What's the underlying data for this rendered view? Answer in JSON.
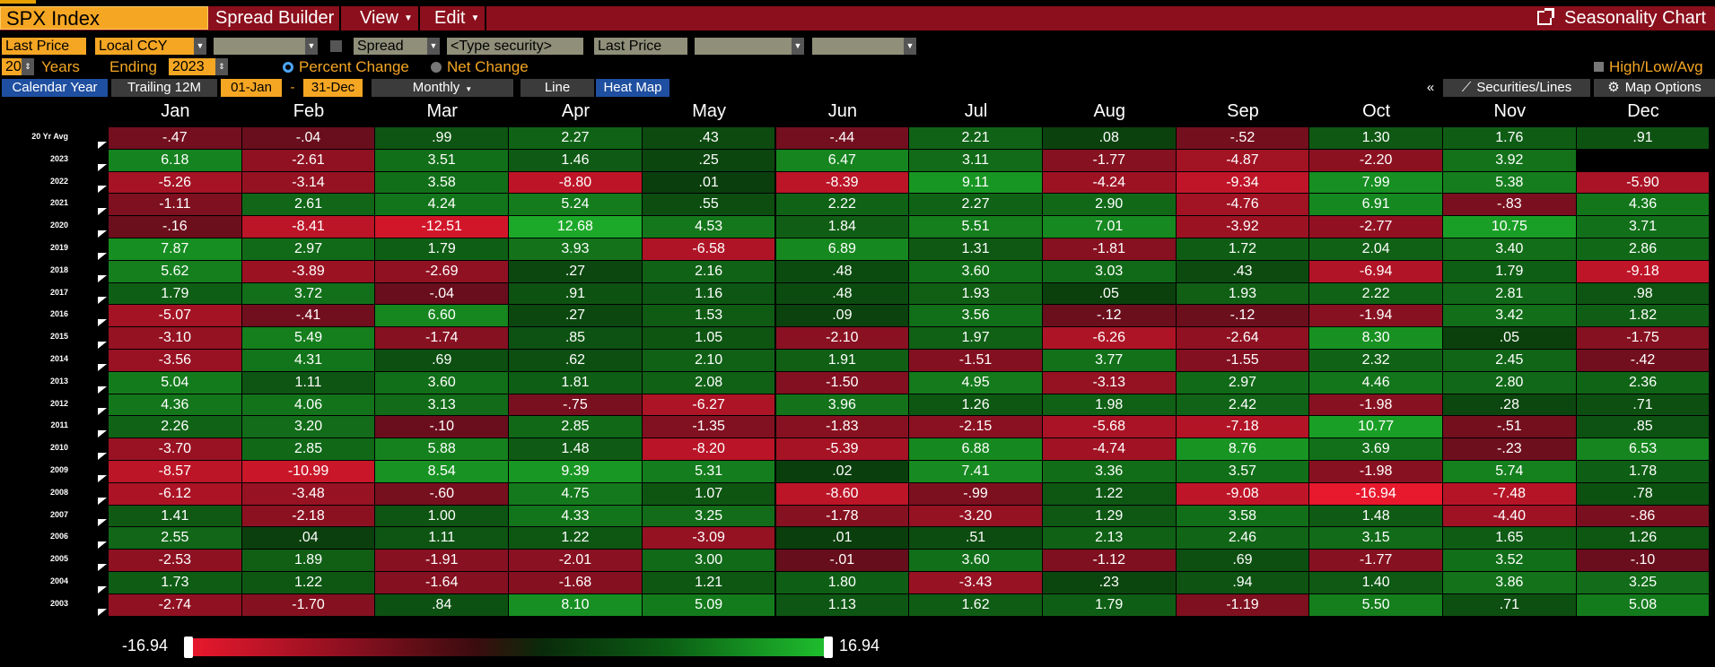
{
  "title_bar": {
    "security": "SPX Index",
    "menus": [
      {
        "label": "Spread Builder",
        "dropdown": false
      },
      {
        "label": "View",
        "dropdown": true
      },
      {
        "label": "Edit",
        "dropdown": true
      }
    ],
    "chart_name": "Seasonality Chart"
  },
  "controls": {
    "field1": "Last Price",
    "currency": "Local CCY",
    "spread_label": "Spread",
    "security_placeholder": "<Type security>",
    "field2": "Last Price",
    "years": "20",
    "years_label": "Years",
    "ending_label": "Ending",
    "ending_year": "2023",
    "mode_percent": "Percent Change",
    "mode_net": "Net Change",
    "high_low": "High/Low/Avg"
  },
  "tabs": {
    "calendar_year": "Calendar Year",
    "trailing": "Trailing 12M",
    "start_date": "01-Jan",
    "dash": "-",
    "end_date": "31-Dec",
    "frequency": "Monthly",
    "line": "Line",
    "heat_map": "Heat Map",
    "collapse": "«",
    "securities_lines": "Securities/Lines",
    "map_options": "Map Options"
  },
  "table": {
    "months": [
      "Jan",
      "Feb",
      "Mar",
      "Apr",
      "May",
      "Jun",
      "Jul",
      "Aug",
      "Sep",
      "Oct",
      "Nov",
      "Dec"
    ],
    "rows": [
      {
        "label": "20 Yr Avg",
        "values": [
          "-.47",
          "-.04",
          ".99",
          "2.27",
          ".43",
          "-.44",
          "2.21",
          ".08",
          "-.52",
          "1.30",
          "1.76",
          ".91"
        ]
      },
      {
        "label": "2023",
        "values": [
          "6.18",
          "-2.61",
          "3.51",
          "1.46",
          ".25",
          "6.47",
          "3.11",
          "-1.77",
          "-4.87",
          "-2.20",
          "3.92",
          ""
        ]
      },
      {
        "label": "2022",
        "values": [
          "-5.26",
          "-3.14",
          "3.58",
          "-8.80",
          ".01",
          "-8.39",
          "9.11",
          "-4.24",
          "-9.34",
          "7.99",
          "5.38",
          "-5.90"
        ]
      },
      {
        "label": "2021",
        "values": [
          "-1.11",
          "2.61",
          "4.24",
          "5.24",
          ".55",
          "2.22",
          "2.27",
          "2.90",
          "-4.76",
          "6.91",
          "-.83",
          "4.36"
        ]
      },
      {
        "label": "2020",
        "values": [
          "-.16",
          "-8.41",
          "-12.51",
          "12.68",
          "4.53",
          "1.84",
          "5.51",
          "7.01",
          "-3.92",
          "-2.77",
          "10.75",
          "3.71"
        ]
      },
      {
        "label": "2019",
        "values": [
          "7.87",
          "2.97",
          "1.79",
          "3.93",
          "-6.58",
          "6.89",
          "1.31",
          "-1.81",
          "1.72",
          "2.04",
          "3.40",
          "2.86"
        ]
      },
      {
        "label": "2018",
        "values": [
          "5.62",
          "-3.89",
          "-2.69",
          ".27",
          "2.16",
          ".48",
          "3.60",
          "3.03",
          ".43",
          "-6.94",
          "1.79",
          "-9.18"
        ]
      },
      {
        "label": "2017",
        "values": [
          "1.79",
          "3.72",
          "-.04",
          ".91",
          "1.16",
          ".48",
          "1.93",
          ".05",
          "1.93",
          "2.22",
          "2.81",
          ".98"
        ]
      },
      {
        "label": "2016",
        "values": [
          "-5.07",
          "-.41",
          "6.60",
          ".27",
          "1.53",
          ".09",
          "3.56",
          "-.12",
          "-.12",
          "-1.94",
          "3.42",
          "1.82"
        ]
      },
      {
        "label": "2015",
        "values": [
          "-3.10",
          "5.49",
          "-1.74",
          ".85",
          "1.05",
          "-2.10",
          "1.97",
          "-6.26",
          "-2.64",
          "8.30",
          ".05",
          "-1.75"
        ]
      },
      {
        "label": "2014",
        "values": [
          "-3.56",
          "4.31",
          ".69",
          ".62",
          "2.10",
          "1.91",
          "-1.51",
          "3.77",
          "-1.55",
          "2.32",
          "2.45",
          "-.42"
        ]
      },
      {
        "label": "2013",
        "values": [
          "5.04",
          "1.11",
          "3.60",
          "1.81",
          "2.08",
          "-1.50",
          "4.95",
          "-3.13",
          "2.97",
          "4.46",
          "2.80",
          "2.36"
        ]
      },
      {
        "label": "2012",
        "values": [
          "4.36",
          "4.06",
          "3.13",
          "-.75",
          "-6.27",
          "3.96",
          "1.26",
          "1.98",
          "2.42",
          "-1.98",
          ".28",
          ".71"
        ]
      },
      {
        "label": "2011",
        "values": [
          "2.26",
          "3.20",
          "-.10",
          "2.85",
          "-1.35",
          "-1.83",
          "-2.15",
          "-5.68",
          "-7.18",
          "10.77",
          "-.51",
          ".85"
        ]
      },
      {
        "label": "2010",
        "values": [
          "-3.70",
          "2.85",
          "5.88",
          "1.48",
          "-8.20",
          "-5.39",
          "6.88",
          "-4.74",
          "8.76",
          "3.69",
          "-.23",
          "6.53"
        ]
      },
      {
        "label": "2009",
        "values": [
          "-8.57",
          "-10.99",
          "8.54",
          "9.39",
          "5.31",
          ".02",
          "7.41",
          "3.36",
          "3.57",
          "-1.98",
          "5.74",
          "1.78"
        ]
      },
      {
        "label": "2008",
        "values": [
          "-6.12",
          "-3.48",
          "-.60",
          "4.75",
          "1.07",
          "-8.60",
          "-.99",
          "1.22",
          "-9.08",
          "-16.94",
          "-7.48",
          ".78"
        ]
      },
      {
        "label": "2007",
        "values": [
          "1.41",
          "-2.18",
          "1.00",
          "4.33",
          "3.25",
          "-1.78",
          "-3.20",
          "1.29",
          "3.58",
          "1.48",
          "-4.40",
          "-.86"
        ]
      },
      {
        "label": "2006",
        "values": [
          "2.55",
          ".04",
          "1.11",
          "1.22",
          "-3.09",
          ".01",
          ".51",
          "2.13",
          "2.46",
          "3.15",
          "1.65",
          "1.26"
        ]
      },
      {
        "label": "2005",
        "values": [
          "-2.53",
          "1.89",
          "-1.91",
          "-2.01",
          "3.00",
          "-.01",
          "3.60",
          "-1.12",
          ".69",
          "-1.77",
          "3.52",
          "-.10"
        ]
      },
      {
        "label": "2004",
        "values": [
          "1.73",
          "1.22",
          "-1.64",
          "-1.68",
          "1.21",
          "1.80",
          "-3.43",
          ".23",
          ".94",
          "1.40",
          "3.86",
          "3.25"
        ]
      },
      {
        "label": "2003",
        "values": [
          "-2.74",
          "-1.70",
          ".84",
          "8.10",
          "5.09",
          "1.13",
          "1.62",
          "1.79",
          "-1.19",
          "5.50",
          ".71",
          "5.08"
        ]
      }
    ]
  },
  "legend": {
    "min": "-16.94",
    "max": "16.94"
  },
  "colors": {
    "accent": "#f5a623",
    "title_bar": "#8b0f1c",
    "negative_max": "#e8182d",
    "negative_min": "#3a0c0e",
    "positive_min": "#0a2a0a",
    "positive_max": "#1fbf2e",
    "tab_active": "#1f4fa0"
  }
}
